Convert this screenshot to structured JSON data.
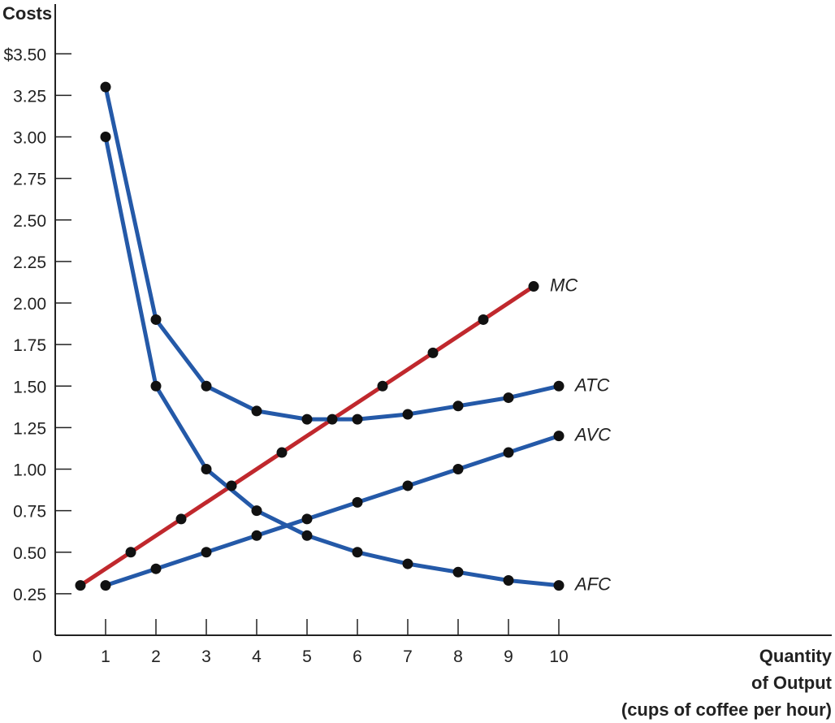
{
  "chart_data": {
    "type": "line",
    "ylabel": "Costs",
    "xlabel_lines": [
      "Quantity",
      "of Output",
      "(cups of coffee per hour)"
    ],
    "origin_label": "0",
    "xlim": [
      0,
      10
    ],
    "ylim": [
      0,
      3.5
    ],
    "x_ticks": [
      1,
      2,
      3,
      4,
      5,
      6,
      7,
      8,
      9,
      10
    ],
    "x_tick_labels": [
      "1",
      "2",
      "3",
      "4",
      "5",
      "6",
      "7",
      "8",
      "9",
      "10"
    ],
    "y_ticks": [
      0.25,
      0.5,
      0.75,
      1.0,
      1.25,
      1.5,
      1.75,
      2.0,
      2.25,
      2.5,
      2.75,
      3.0,
      3.25,
      3.5
    ],
    "y_tick_labels": [
      "0.25",
      "0.50",
      "0.75",
      "1.00",
      "1.25",
      "1.50",
      "1.75",
      "2.00",
      "2.25",
      "2.50",
      "2.75",
      "3.00",
      "3.25",
      "$3.50"
    ],
    "grid": false,
    "legend": "none",
    "series": [
      {
        "name": "MC",
        "color": "#c0282d",
        "x": [
          0.5,
          1.5,
          2.5,
          3.5,
          4.5,
          5.5,
          6.5,
          7.5,
          8.5,
          9.5
        ],
        "y": [
          0.3,
          0.5,
          0.7,
          0.9,
          1.1,
          1.3,
          1.5,
          1.7,
          1.9,
          2.1
        ]
      },
      {
        "name": "ATC",
        "color": "#2459a8",
        "x": [
          1,
          2,
          3,
          4,
          5,
          6,
          7,
          8,
          9,
          10
        ],
        "y": [
          3.3,
          1.9,
          1.5,
          1.35,
          1.3,
          1.3,
          1.33,
          1.38,
          1.43,
          1.5
        ]
      },
      {
        "name": "AVC",
        "color": "#2459a8",
        "x": [
          1,
          2,
          3,
          4,
          5,
          6,
          7,
          8,
          9,
          10
        ],
        "y": [
          0.3,
          0.4,
          0.5,
          0.6,
          0.7,
          0.8,
          0.9,
          1.0,
          1.1,
          1.2
        ]
      },
      {
        "name": "AFC",
        "color": "#2459a8",
        "x": [
          1,
          2,
          3,
          4,
          5,
          6,
          7,
          8,
          9,
          10
        ],
        "y": [
          3.0,
          1.5,
          1.0,
          0.75,
          0.6,
          0.5,
          0.43,
          0.38,
          0.33,
          0.3
        ]
      }
    ]
  }
}
